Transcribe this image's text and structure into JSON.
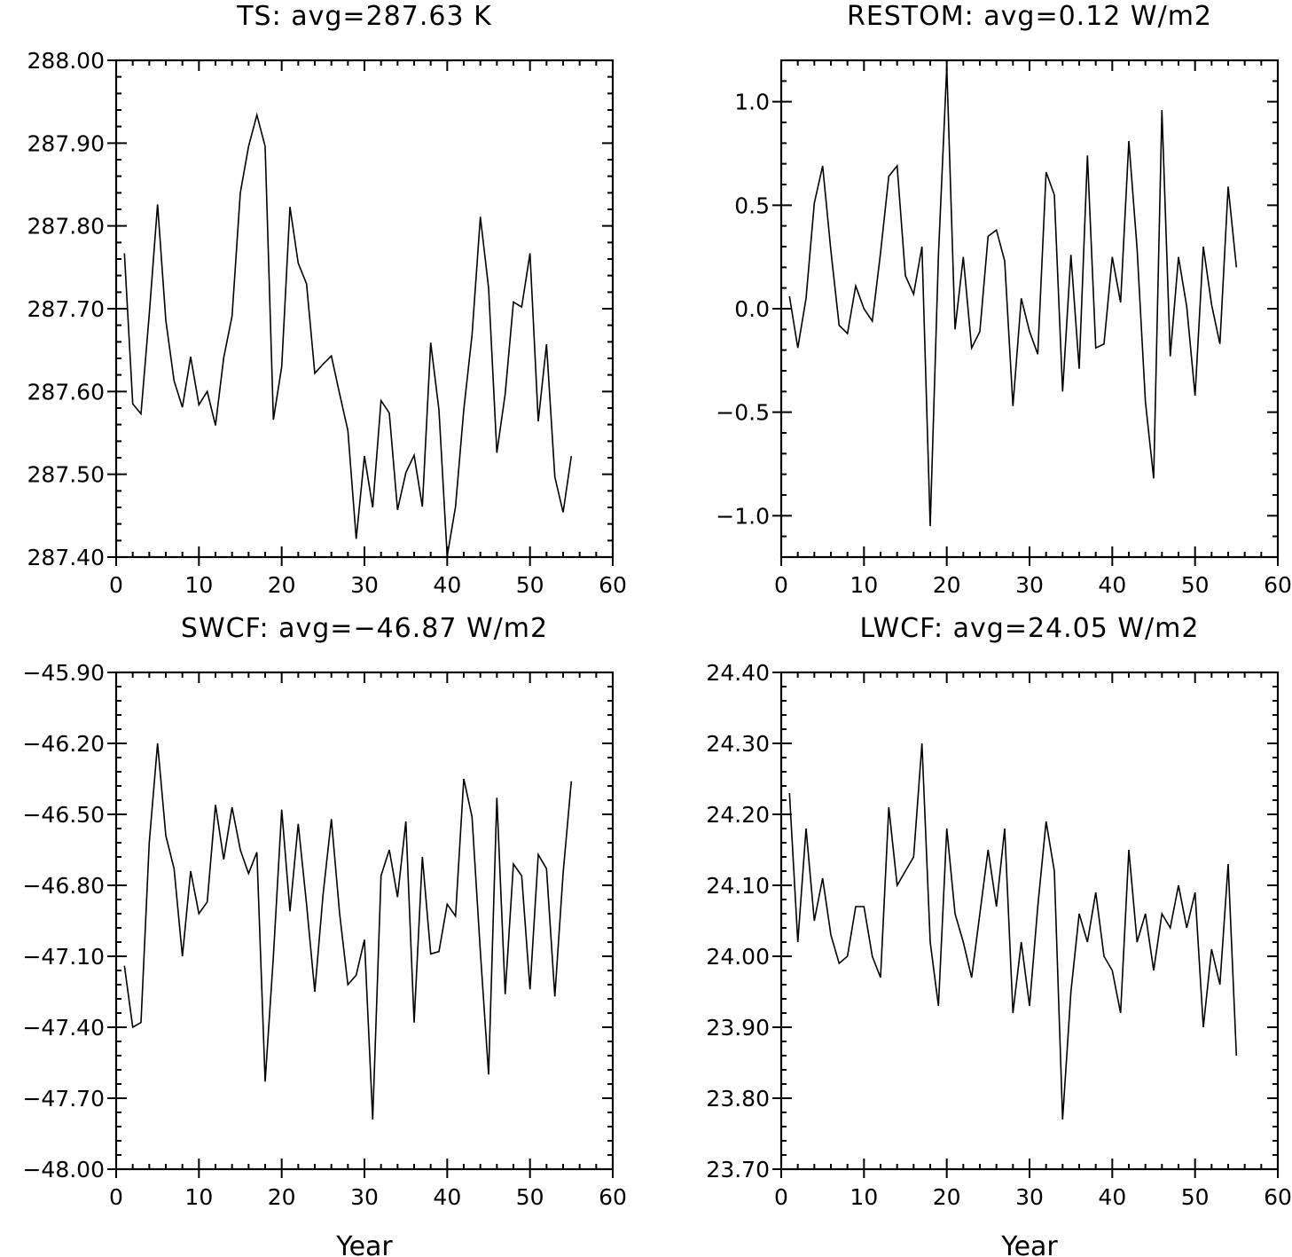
{
  "chart_data": [
    {
      "type": "line",
      "title": "TS: avg=287.63 K",
      "xlabel": "",
      "ylabel": "",
      "xlim": [
        0,
        60
      ],
      "ylim": [
        287.4,
        288.0
      ],
      "x_ticks": [
        0,
        10,
        20,
        30,
        40,
        50,
        60
      ],
      "x_tick_labels": [
        "0",
        "10",
        "20",
        "30",
        "40",
        "50",
        "60"
      ],
      "y_ticks": [
        287.4,
        287.5,
        287.6,
        287.7,
        287.8,
        287.9,
        288.0
      ],
      "y_tick_labels": [
        "287.40",
        "287.50",
        "287.60",
        "287.70",
        "287.80",
        "287.90",
        "288.00"
      ],
      "x": [
        1,
        2,
        3,
        4,
        5,
        6,
        7,
        8,
        9,
        10,
        11,
        12,
        13,
        14,
        15,
        16,
        17,
        18,
        19,
        20,
        21,
        22,
        23,
        24,
        25,
        26,
        27,
        28,
        29,
        30,
        31,
        32,
        33,
        34,
        35,
        36,
        37,
        38,
        39,
        40,
        41,
        42,
        43,
        44,
        45,
        46,
        47,
        48,
        49,
        50,
        51,
        52,
        53,
        54,
        55
      ],
      "values": [
        287.767,
        287.585,
        287.573,
        287.693,
        287.826,
        287.686,
        287.613,
        287.581,
        287.642,
        287.584,
        287.6,
        287.559,
        287.641,
        287.691,
        287.84,
        287.896,
        287.934,
        287.896,
        287.566,
        287.63,
        287.823,
        287.755,
        287.73,
        287.622,
        287.633,
        287.643,
        287.597,
        287.553,
        287.422,
        287.522,
        287.46,
        287.589,
        287.574,
        287.457,
        287.502,
        287.523,
        287.461,
        287.659,
        287.578,
        287.401,
        287.461,
        287.578,
        287.668,
        287.811,
        287.725,
        287.526,
        287.597,
        287.708,
        287.702,
        287.767,
        287.564,
        287.657,
        287.497,
        287.454,
        287.522
      ]
    },
    {
      "type": "line",
      "title": "RESTOM: avg=0.12 W/m2",
      "xlabel": "",
      "ylabel": "",
      "xlim": [
        0,
        60
      ],
      "ylim": [
        -1.2,
        1.2
      ],
      "x_ticks": [
        0,
        10,
        20,
        30,
        40,
        50,
        60
      ],
      "x_tick_labels": [
        "0",
        "10",
        "20",
        "30",
        "40",
        "50",
        "60"
      ],
      "y_ticks": [
        -1.0,
        -0.5,
        0.0,
        0.5,
        1.0
      ],
      "y_tick_labels": [
        "−1.0",
        "−0.5",
        "0.0",
        "0.5",
        "1.0"
      ],
      "x": [
        1,
        2,
        3,
        4,
        5,
        6,
        7,
        8,
        9,
        10,
        11,
        12,
        13,
        14,
        15,
        16,
        17,
        18,
        19,
        20,
        21,
        22,
        23,
        24,
        25,
        26,
        27,
        28,
        29,
        30,
        31,
        32,
        33,
        34,
        35,
        36,
        37,
        38,
        39,
        40,
        41,
        42,
        43,
        44,
        45,
        46,
        47,
        48,
        49,
        50,
        51,
        52,
        53,
        54,
        55
      ],
      "values": [
        0.06,
        -0.19,
        0.05,
        0.51,
        0.69,
        0.28,
        -0.08,
        -0.12,
        0.11,
        0.0,
        -0.06,
        0.27,
        0.64,
        0.69,
        0.16,
        0.07,
        0.3,
        -1.05,
        0.26,
        1.17,
        -0.1,
        0.25,
        -0.19,
        -0.11,
        0.35,
        0.38,
        0.23,
        -0.47,
        0.05,
        -0.11,
        -0.22,
        0.66,
        0.55,
        -0.4,
        0.26,
        -0.29,
        0.74,
        -0.19,
        -0.17,
        0.25,
        0.03,
        0.81,
        0.29,
        -0.45,
        -0.82,
        0.96,
        -0.23,
        0.25,
        0.01,
        -0.42,
        0.3,
        0.02,
        -0.17,
        0.59,
        0.2
      ]
    },
    {
      "type": "line",
      "title": "SWCF: avg=−46.87 W/m2",
      "xlabel": "Year",
      "ylabel": "",
      "xlim": [
        0,
        60
      ],
      "ylim": [
        -48.0,
        -45.9
      ],
      "x_ticks": [
        0,
        10,
        20,
        30,
        40,
        50,
        60
      ],
      "x_tick_labels": [
        "0",
        "10",
        "20",
        "30",
        "40",
        "50",
        "60"
      ],
      "y_ticks": [
        -48.0,
        -47.7,
        -47.4,
        -47.1,
        -46.8,
        -46.5,
        -46.2,
        -45.9
      ],
      "y_tick_labels": [
        "−48.00",
        "−47.70",
        "−47.40",
        "−47.10",
        "−46.80",
        "−46.50",
        "−46.20",
        "−45.90"
      ],
      "x": [
        1,
        2,
        3,
        4,
        5,
        6,
        7,
        8,
        9,
        10,
        11,
        12,
        13,
        14,
        15,
        16,
        17,
        18,
        19,
        20,
        21,
        22,
        23,
        24,
        25,
        26,
        27,
        28,
        29,
        30,
        31,
        32,
        33,
        34,
        35,
        36,
        37,
        38,
        39,
        40,
        41,
        42,
        43,
        44,
        45,
        46,
        47,
        48,
        49,
        50,
        51,
        52,
        53,
        54,
        55
      ],
      "values": [
        -47.14,
        -47.4,
        -47.38,
        -46.62,
        -46.2,
        -46.59,
        -46.73,
        -47.1,
        -46.74,
        -46.92,
        -46.87,
        -46.46,
        -46.69,
        -46.47,
        -46.65,
        -46.75,
        -46.66,
        -47.63,
        -47.1,
        -46.48,
        -46.91,
        -46.54,
        -46.88,
        -47.25,
        -46.84,
        -46.52,
        -46.92,
        -47.22,
        -47.18,
        -47.03,
        -47.79,
        -46.76,
        -46.65,
        -46.85,
        -46.53,
        -47.38,
        -46.68,
        -47.09,
        -47.08,
        -46.88,
        -46.93,
        -46.35,
        -46.51,
        -47.08,
        -47.6,
        -46.43,
        -47.26,
        -46.71,
        -46.76,
        -47.24,
        -46.67,
        -46.73,
        -47.27,
        -46.75,
        -46.36
      ]
    },
    {
      "type": "line",
      "title": "LWCF: avg=24.05 W/m2",
      "xlabel": "Year",
      "ylabel": "",
      "xlim": [
        0,
        60
      ],
      "ylim": [
        23.7,
        24.4
      ],
      "x_ticks": [
        0,
        10,
        20,
        30,
        40,
        50,
        60
      ],
      "x_tick_labels": [
        "0",
        "10",
        "20",
        "30",
        "40",
        "50",
        "60"
      ],
      "y_ticks": [
        23.7,
        23.8,
        23.9,
        24.0,
        24.1,
        24.2,
        24.3,
        24.4
      ],
      "y_tick_labels": [
        "23.70",
        "23.80",
        "23.90",
        "24.00",
        "24.10",
        "24.20",
        "24.30",
        "24.40"
      ],
      "x": [
        1,
        2,
        3,
        4,
        5,
        6,
        7,
        8,
        9,
        10,
        11,
        12,
        13,
        14,
        15,
        16,
        17,
        18,
        19,
        20,
        21,
        22,
        23,
        24,
        25,
        26,
        27,
        28,
        29,
        30,
        31,
        32,
        33,
        34,
        35,
        36,
        37,
        38,
        39,
        40,
        41,
        42,
        43,
        44,
        45,
        46,
        47,
        48,
        49,
        50,
        51,
        52,
        53,
        54,
        55
      ],
      "values": [
        24.23,
        24.02,
        24.18,
        24.05,
        24.11,
        24.03,
        23.99,
        24.0,
        24.07,
        24.07,
        24.0,
        23.97,
        24.21,
        24.1,
        24.12,
        24.14,
        24.3,
        24.02,
        23.93,
        24.18,
        24.06,
        24.02,
        23.97,
        24.06,
        24.15,
        24.07,
        24.18,
        23.92,
        24.02,
        23.93,
        24.07,
        24.19,
        24.12,
        23.77,
        23.95,
        24.06,
        24.02,
        24.09,
        24.0,
        23.98,
        23.92,
        24.15,
        24.02,
        24.06,
        23.98,
        24.06,
        24.04,
        24.1,
        24.04,
        24.09,
        23.9,
        24.01,
        23.96,
        24.13,
        23.86
      ]
    }
  ]
}
